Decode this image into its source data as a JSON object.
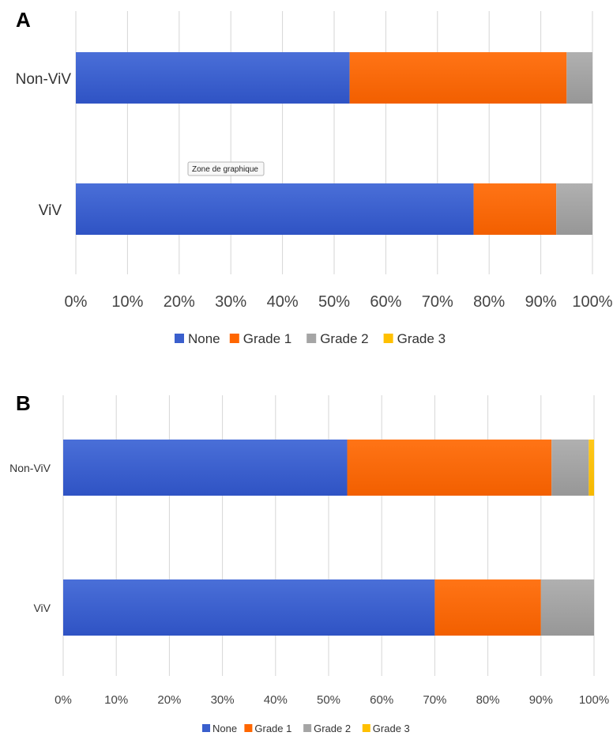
{
  "chart_data": [
    {
      "panel_label": "A",
      "type": "bar",
      "orientation": "horizontal",
      "stacked": "percent",
      "categories": [
        "Non-ViV",
        "ViV"
      ],
      "series": [
        {
          "name": "None",
          "color": "#3a5fcd",
          "values": [
            53,
            77
          ]
        },
        {
          "name": "Grade 1",
          "color": "#ff6600",
          "values": [
            42,
            16
          ]
        },
        {
          "name": "Grade 2",
          "color": "#a5a5a5",
          "values": [
            5,
            7
          ]
        },
        {
          "name": "Grade 3",
          "color": "#ffc000",
          "values": [
            0,
            0
          ]
        }
      ],
      "xlim": [
        0,
        100
      ],
      "x_ticks": [
        "0%",
        "10%",
        "20%",
        "30%",
        "40%",
        "50%",
        "60%",
        "70%",
        "80%",
        "90%",
        "100%"
      ],
      "grid": "vertical",
      "legend": "bottom",
      "tooltip": "Zone de graphique"
    },
    {
      "panel_label": "B",
      "type": "bar",
      "orientation": "horizontal",
      "stacked": "percent",
      "categories": [
        "Non-ViV",
        "ViV"
      ],
      "series": [
        {
          "name": "None",
          "color": "#3a5fcd",
          "values": [
            53.5,
            70
          ]
        },
        {
          "name": "Grade 1",
          "color": "#ff6600",
          "values": [
            38.5,
            20
          ]
        },
        {
          "name": "Grade 2",
          "color": "#a5a5a5",
          "values": [
            7,
            10
          ]
        },
        {
          "name": "Grade 3",
          "color": "#ffc000",
          "values": [
            1,
            0
          ]
        }
      ],
      "xlim": [
        0,
        100
      ],
      "x_ticks": [
        "0%",
        "10%",
        "20%",
        "30%",
        "40%",
        "50%",
        "60%",
        "70%",
        "80%",
        "90%",
        "100%"
      ],
      "grid": "vertical",
      "legend": "bottom"
    }
  ]
}
